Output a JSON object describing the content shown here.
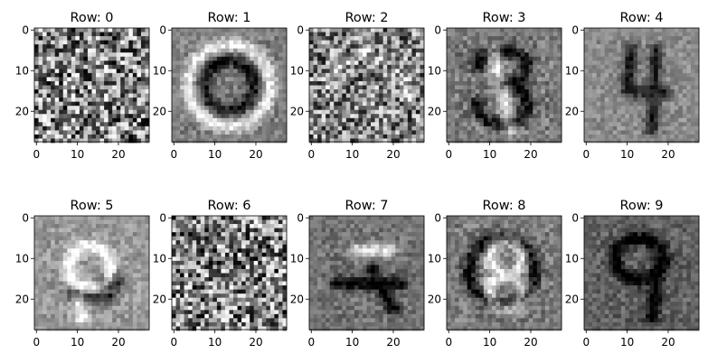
{
  "chart_data": {
    "type": "heatmap",
    "colormap": "gray",
    "grid": false,
    "xlim": [
      -0.5,
      27.5
    ],
    "ylim": [
      27.5,
      -0.5
    ],
    "xticks": [
      0,
      10,
      20
    ],
    "yticks": [
      0,
      10,
      20
    ],
    "rows": 2,
    "cols": 5,
    "panels": [
      {
        "title": "Row: 0",
        "pattern": "noise",
        "contrast": 1.0,
        "background": 0.5
      },
      {
        "title": "Row: 1",
        "pattern": "blob-zero",
        "contrast": 0.55,
        "background": 0.5
      },
      {
        "title": "Row: 2",
        "pattern": "noise-arc",
        "contrast": 0.9,
        "background": 0.5
      },
      {
        "title": "Row: 3",
        "pattern": "digit-three",
        "contrast": 0.65,
        "background": 0.48
      },
      {
        "title": "Row: 4",
        "pattern": "digit-four",
        "contrast": 0.45,
        "background": 0.55
      },
      {
        "title": "Row: 5",
        "pattern": "digit-five",
        "contrast": 0.5,
        "background": 0.6
      },
      {
        "title": "Row: 6",
        "pattern": "noise",
        "contrast": 1.0,
        "background": 0.5
      },
      {
        "title": "Row: 7",
        "pattern": "digit-seven",
        "contrast": 0.5,
        "background": 0.45
      },
      {
        "title": "Row: 8",
        "pattern": "digit-eight",
        "contrast": 0.6,
        "background": 0.48
      },
      {
        "title": "Row: 9",
        "pattern": "digit-nine",
        "contrast": 0.5,
        "background": 0.38
      }
    ]
  }
}
